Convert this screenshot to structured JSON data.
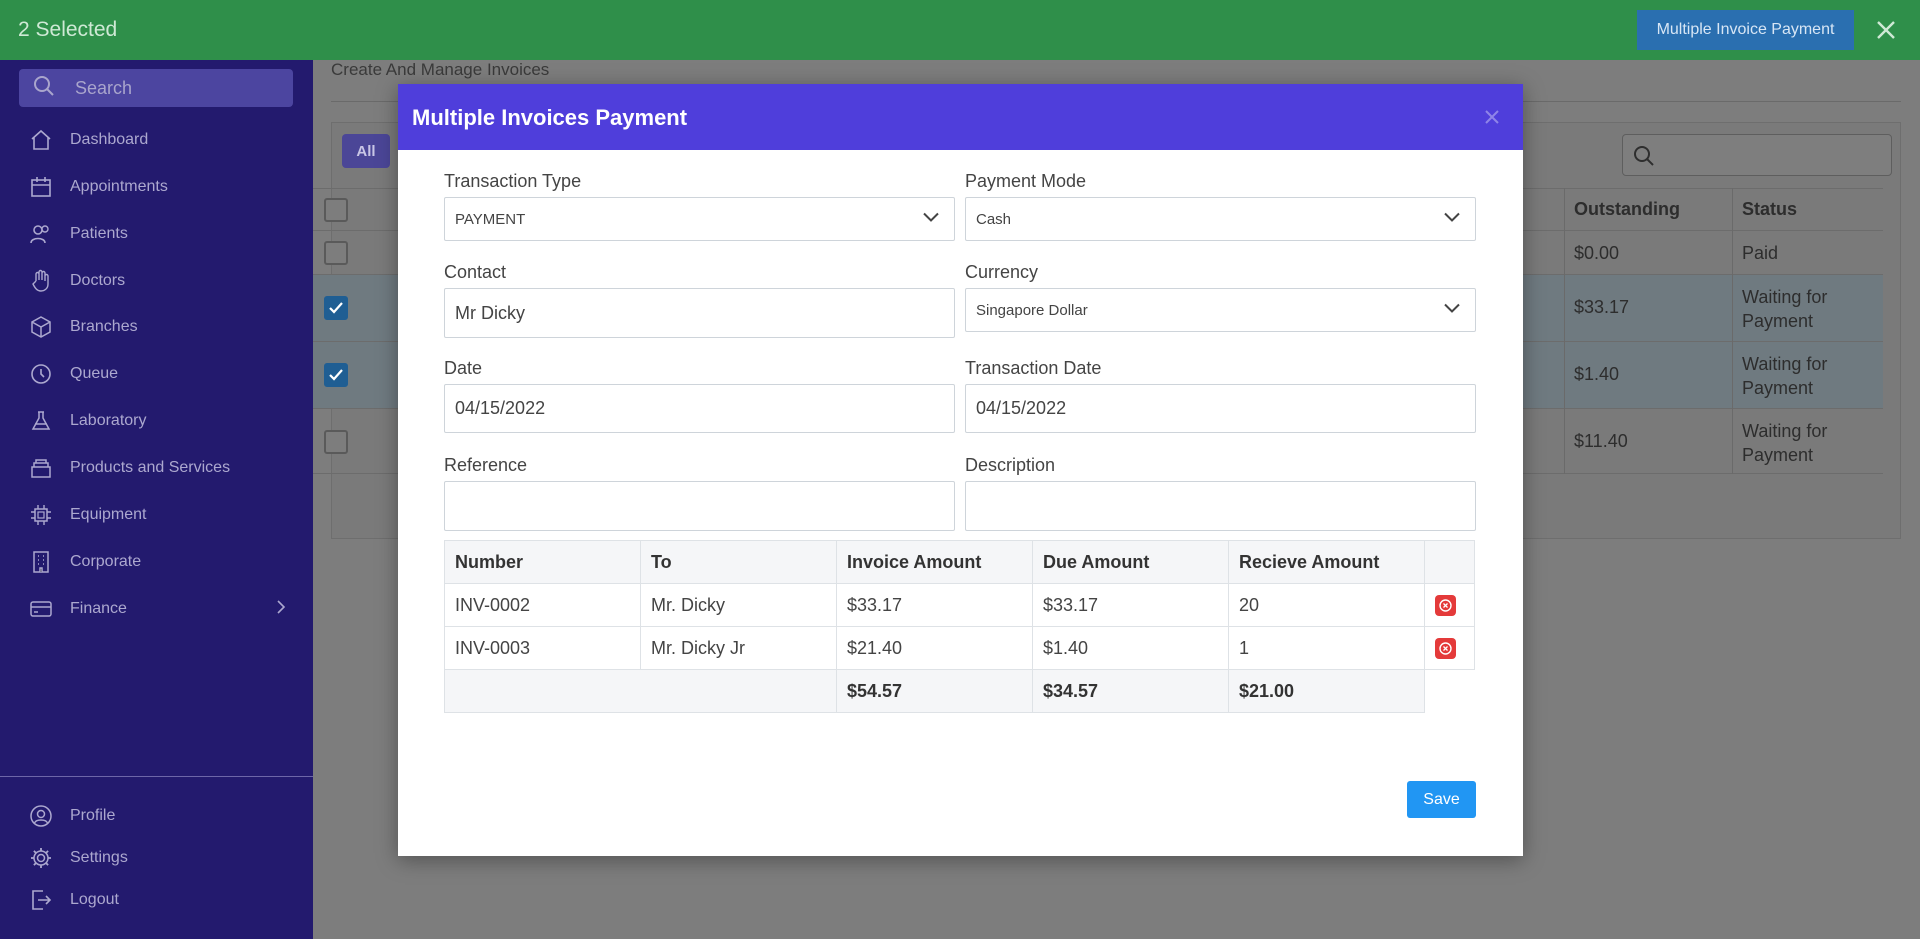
{
  "topbar": {
    "selected_text": "2 Selected",
    "multi_payment_label": "Multiple Invoice Payment"
  },
  "sidebar": {
    "search_placeholder": "Search",
    "items": [
      {
        "label": "Dashboard",
        "icon": "home-icon"
      },
      {
        "label": "Appointments",
        "icon": "calendar-icon"
      },
      {
        "label": "Patients",
        "icon": "users-icon"
      },
      {
        "label": "Doctors",
        "icon": "hand-icon"
      },
      {
        "label": "Branches",
        "icon": "box-icon"
      },
      {
        "label": "Queue",
        "icon": "clock-icon"
      },
      {
        "label": "Laboratory",
        "icon": "flask-icon"
      },
      {
        "label": "Products and Services",
        "icon": "stack-icon"
      },
      {
        "label": "Equipment",
        "icon": "chip-icon"
      },
      {
        "label": "Corporate",
        "icon": "building-icon"
      },
      {
        "label": "Finance",
        "icon": "card-icon"
      }
    ],
    "bottom_items": [
      {
        "label": "Profile",
        "icon": "user-icon"
      },
      {
        "label": "Settings",
        "icon": "gear-icon"
      },
      {
        "label": "Logout",
        "icon": "logout-icon"
      }
    ]
  },
  "main": {
    "subtitle": "Create And Manage Invoices",
    "filter_all": "All",
    "columns": {
      "outstanding": "Outstanding",
      "status": "Status"
    },
    "rows": [
      {
        "outstanding": "$0.00",
        "status": "Paid",
        "checked": false
      },
      {
        "outstanding": "$33.17",
        "status": "Waiting for Payment",
        "checked": true
      },
      {
        "outstanding": "$1.40",
        "status": "Waiting for Payment",
        "checked": true
      },
      {
        "outstanding": "$11.40",
        "status": "Waiting for Payment",
        "checked": false
      }
    ]
  },
  "modal": {
    "title": "Multiple Invoices Payment",
    "transaction_type_label": "Transaction Type",
    "transaction_type_value": "PAYMENT",
    "payment_mode_label": "Payment Mode",
    "payment_mode_value": "Cash",
    "contact_label": "Contact",
    "contact_value": "Mr Dicky",
    "currency_label": "Currency",
    "currency_value": "Singapore Dollar",
    "date_label": "Date",
    "date_value": "04/15/2022",
    "transaction_date_label": "Transaction Date",
    "transaction_date_value": "04/15/2022",
    "reference_label": "Reference",
    "reference_value": "",
    "description_label": "Description",
    "description_value": "",
    "table": {
      "headers": [
        "Number",
        "To",
        "Invoice Amount",
        "Due Amount",
        "Recieve Amount"
      ],
      "rows": [
        {
          "number": "INV-0002",
          "to": "Mr. Dicky",
          "invoice_amount": "$33.17",
          "due_amount": "$33.17",
          "receive_amount": "20"
        },
        {
          "number": "INV-0003",
          "to": "Mr. Dicky Jr",
          "invoice_amount": "$21.40",
          "due_amount": "$1.40",
          "receive_amount": "1"
        }
      ],
      "totals": {
        "invoice_amount": "$54.57",
        "due_amount": "$34.57",
        "receive_amount": "$21.00"
      }
    },
    "save_label": "Save"
  },
  "colors": {
    "topbar": "#2f8f4a",
    "sidebar": "#231a6e",
    "modal_header": "#4f3edb",
    "save_button": "#2196f3",
    "delete_button": "#e43a3a"
  }
}
